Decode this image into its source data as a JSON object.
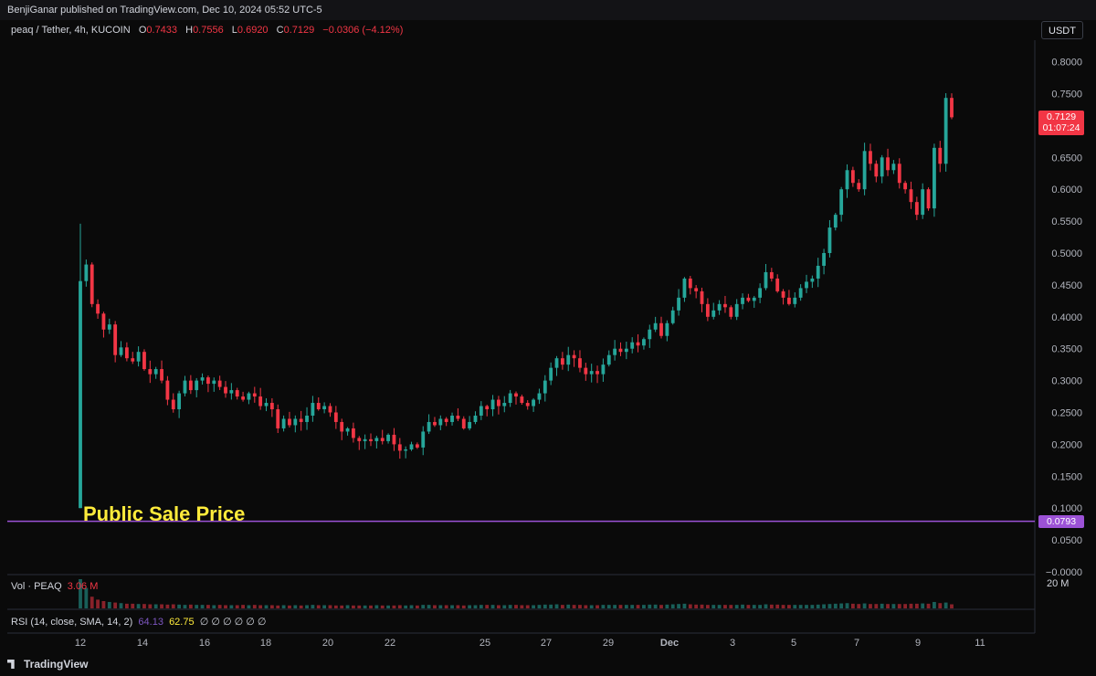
{
  "header": {
    "published_by": "BenjiGanar published on TradingView.com, Dec 10, 2024 05:52 UTC-5"
  },
  "symbol": {
    "title": "peaq / Tether, 4h, KUCOIN",
    "o_label": "O",
    "o_value": "0.7433",
    "h_label": "H",
    "h_value": "0.7556",
    "l_label": "L",
    "l_value": "0.6920",
    "c_label": "C",
    "c_value": "0.7129",
    "change": "−0.0306 (−4.12%)"
  },
  "currency": "USDT",
  "last_price": {
    "price": "0.7129",
    "countdown": "01:07:24",
    "color": "#f23645"
  },
  "horizontal_line": {
    "price_label": "0.0793",
    "color": "#9c52d6"
  },
  "annotation": "Public Sale Price",
  "volume_legend": {
    "label": "Vol · PEAQ",
    "value": "3.06 M"
  },
  "volume_axis_label": "20 M",
  "rsi_legend": {
    "label": "RSI (14, close, SMA, 14, 2)",
    "rsi": "64.13",
    "sma": "62.75",
    "extra": "∅ ∅ ∅ ∅ ∅ ∅"
  },
  "brand": "TradingView",
  "colors": {
    "up": "#26a69a",
    "down": "#f23645",
    "background": "#0a0a0a"
  },
  "chart_data": {
    "type": "candlestick",
    "ylim": [
      0,
      0.8
    ],
    "y_ticks": [
      "0.8000",
      "0.7500",
      "0.6500",
      "0.6000",
      "0.5500",
      "0.5000",
      "0.4500",
      "0.4000",
      "0.3500",
      "0.3000",
      "0.2500",
      "0.2000",
      "0.1500",
      "0.1000",
      "0.0500",
      "−0.0000"
    ],
    "x_ticks": [
      "12",
      "14",
      "16",
      "18",
      "20",
      "22",
      "25",
      "27",
      "29",
      "Dec",
      "3",
      "5",
      "7",
      "9",
      "11"
    ],
    "series": [
      {
        "name": "peaq / Tether",
        "close": [
          0.456,
          0.482,
          0.42,
          0.405,
          0.38,
          0.388,
          0.34,
          0.352,
          0.335,
          0.33,
          0.345,
          0.318,
          0.31,
          0.318,
          0.3,
          0.27,
          0.255,
          0.28,
          0.3,
          0.285,
          0.3,
          0.305,
          0.295,
          0.3,
          0.29,
          0.28,
          0.285,
          0.275,
          0.27,
          0.28,
          0.275,
          0.26,
          0.265,
          0.255,
          0.225,
          0.24,
          0.23,
          0.24,
          0.235,
          0.245,
          0.265,
          0.255,
          0.26,
          0.25,
          0.235,
          0.22,
          0.225,
          0.21,
          0.205,
          0.208,
          0.205,
          0.21,
          0.205,
          0.215,
          0.2,
          0.19,
          0.192,
          0.2,
          0.195,
          0.22,
          0.235,
          0.23,
          0.24,
          0.235,
          0.245,
          0.24,
          0.225,
          0.235,
          0.245,
          0.26,
          0.255,
          0.27,
          0.26,
          0.265,
          0.28,
          0.275,
          0.265,
          0.26,
          0.27,
          0.28,
          0.3,
          0.32,
          0.335,
          0.325,
          0.34,
          0.335,
          0.32,
          0.31,
          0.315,
          0.31,
          0.325,
          0.34,
          0.35,
          0.345,
          0.35,
          0.36,
          0.355,
          0.365,
          0.38,
          0.39,
          0.37,
          0.39,
          0.41,
          0.43,
          0.46,
          0.445,
          0.44,
          0.42,
          0.4,
          0.41,
          0.42,
          0.415,
          0.4,
          0.42,
          0.43,
          0.425,
          0.43,
          0.445,
          0.47,
          0.46,
          0.44,
          0.43,
          0.42,
          0.43,
          0.445,
          0.455,
          0.46,
          0.48,
          0.5,
          0.54,
          0.56,
          0.6,
          0.63,
          0.61,
          0.6,
          0.66,
          0.64,
          0.62,
          0.65,
          0.63,
          0.64,
          0.61,
          0.6,
          0.58,
          0.56,
          0.6,
          0.57,
          0.665,
          0.64,
          0.7433,
          0.7129
        ],
        "open_first": 0.1,
        "volume": [
          100,
          70,
          40,
          30,
          25,
          22,
          20,
          18,
          16,
          16,
          15,
          15,
          14,
          14,
          14,
          13,
          14,
          13,
          12,
          13,
          12,
          12,
          12,
          11,
          12,
          11,
          11,
          11,
          12,
          11,
          12,
          11,
          11,
          11,
          10,
          11,
          10,
          11,
          10,
          11,
          12,
          11,
          11,
          11,
          10,
          10,
          11,
          10,
          10,
          10,
          10,
          11,
          10,
          10,
          10,
          11,
          10,
          11,
          10,
          12,
          12,
          11,
          11,
          11,
          11,
          11,
          10,
          11,
          11,
          12,
          12,
          12,
          11,
          11,
          12,
          12,
          11,
          11,
          11,
          12,
          13,
          13,
          14,
          12,
          13,
          12,
          12,
          11,
          11,
          11,
          12,
          12,
          12,
          12,
          12,
          12,
          12,
          12,
          13,
          13,
          12,
          13,
          14,
          15,
          16,
          14,
          13,
          13,
          12,
          12,
          12,
          12,
          12,
          12,
          13,
          12,
          12,
          12,
          14,
          13,
          13,
          12,
          12,
          12,
          12,
          12,
          12,
          13,
          14,
          15,
          16,
          17,
          18,
          16,
          15,
          17,
          15,
          15,
          16,
          15,
          15,
          15,
          15,
          16,
          16,
          17,
          16,
          22,
          18,
          20,
          14
        ]
      }
    ]
  }
}
